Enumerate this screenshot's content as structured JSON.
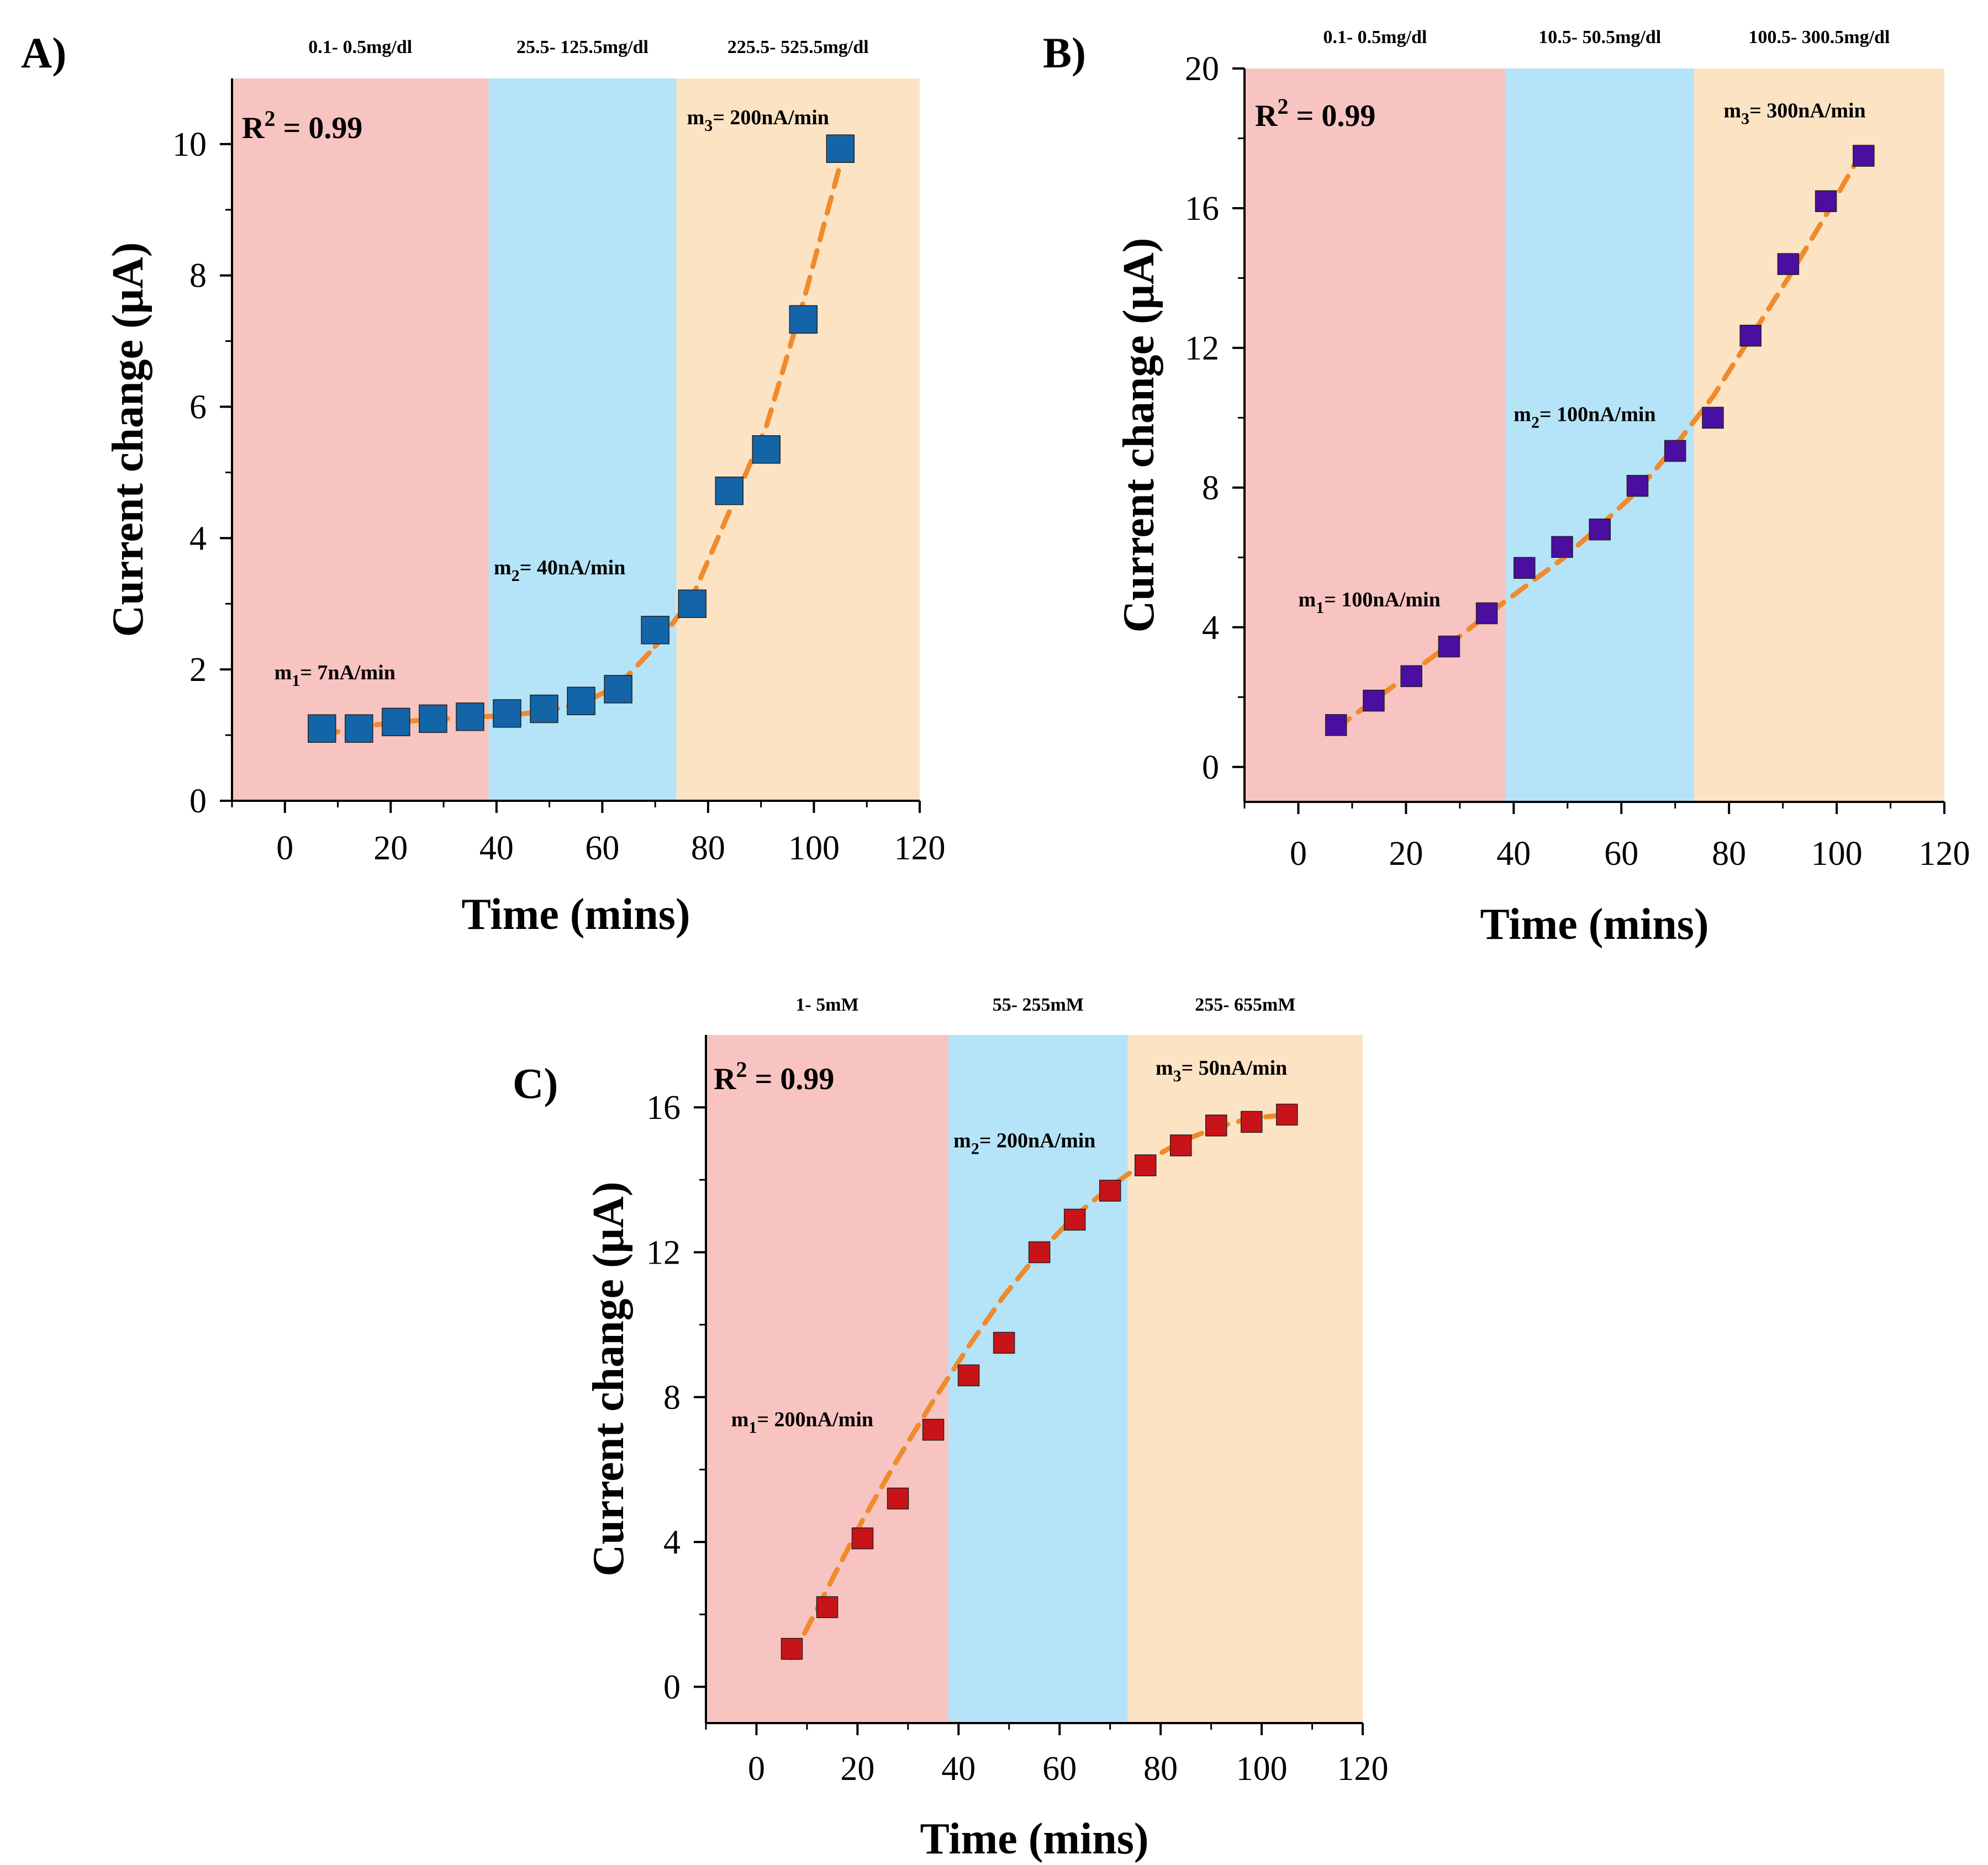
{
  "colors": {
    "band1": "#f8c4c1",
    "band2": "#b5e4f8",
    "band3": "#fce3c4",
    "fit": "#f08a2c",
    "axis": "#000000"
  },
  "chart_data": [
    {
      "type": "scatter",
      "panel_label": "A)",
      "xlabel": "Time (mins)",
      "ylabel": "Current change (μA)",
      "xlim": [
        -10,
        120
      ],
      "ylim": [
        0,
        11
      ],
      "xticks": [
        0,
        20,
        40,
        60,
        80,
        100,
        120
      ],
      "yticks": [
        0,
        2,
        4,
        6,
        8,
        10
      ],
      "marker_color": "#1464a8",
      "r2": {
        "prefix": "R",
        "sup": "2",
        "suffix": " = 0.99"
      },
      "bands": [
        {
          "from": -10,
          "to": 38.5,
          "color_key": "band1",
          "label": "0.1- 0.5mg/dl"
        },
        {
          "from": 38.5,
          "to": 74,
          "color_key": "band2",
          "label": "25.5- 125.5mg/dl"
        },
        {
          "from": 74,
          "to": 120,
          "color_key": "band3",
          "label": "225.5- 525.5mg/dl"
        }
      ],
      "slopes": [
        {
          "m": "m",
          "sub": "1",
          "text": "= 7nA/min",
          "x": -2,
          "y": 1.85
        },
        {
          "m": "m",
          "sub": "2",
          "text": "= 40nA/min",
          "x": 39.5,
          "y": 3.45
        },
        {
          "m": "m",
          "sub": "3",
          "text": "= 200nA/min",
          "x": 76,
          "y": 10.3
        }
      ],
      "series": [
        {
          "name": "data",
          "x": [
            7,
            14,
            21,
            28,
            35,
            42,
            49,
            56,
            63,
            70,
            77,
            84,
            91,
            98,
            105
          ],
          "y": [
            1.1,
            1.1,
            1.2,
            1.25,
            1.28,
            1.33,
            1.4,
            1.52,
            1.7,
            2.6,
            3.0,
            4.72,
            5.35,
            7.33,
            9.93
          ]
        }
      ],
      "fits": [
        {
          "x": [
            7,
            14,
            21,
            28,
            35,
            42,
            49,
            56,
            63,
            70
          ],
          "y": [
            1.0,
            1.12,
            1.2,
            1.24,
            1.27,
            1.3,
            1.36,
            1.48,
            1.75,
            2.35
          ]
        },
        {
          "x": [
            70,
            77,
            84,
            91,
            98,
            105
          ],
          "y": [
            2.35,
            3.1,
            4.4,
            5.7,
            7.6,
            9.7
          ]
        }
      ]
    },
    {
      "type": "scatter",
      "panel_label": "B)",
      "xlabel": "Time (mins)",
      "ylabel": "Current change (μA)",
      "xlim": [
        -10,
        120
      ],
      "ylim": [
        -1,
        20
      ],
      "xticks": [
        0,
        20,
        40,
        60,
        80,
        100,
        120
      ],
      "yticks": [
        0,
        4,
        8,
        12,
        16,
        20
      ],
      "marker_color": "#4a0fa0",
      "r2": {
        "prefix": "R",
        "sup": "2",
        "suffix": " = 0.99"
      },
      "bands": [
        {
          "from": -10,
          "to": 38.5,
          "color_key": "band1",
          "label": "0.1- 0.5mg/dl"
        },
        {
          "from": 38.5,
          "to": 73.5,
          "color_key": "band2",
          "label": "10.5- 50.5mg/dl"
        },
        {
          "from": 73.5,
          "to": 120,
          "color_key": "band3",
          "label": "100.5- 300.5mg/dl"
        }
      ],
      "slopes": [
        {
          "m": "m",
          "sub": "1",
          "text": "= 100nA/min",
          "x": 0,
          "y": 4.6
        },
        {
          "m": "m",
          "sub": "2",
          "text": "= 100nA/min",
          "x": 40,
          "y": 9.9
        },
        {
          "m": "m",
          "sub": "3",
          "text": "= 300nA/min",
          "x": 79,
          "y": 18.6
        }
      ],
      "series": [
        {
          "name": "data",
          "x": [
            7,
            14,
            21,
            28,
            35,
            42,
            49,
            56,
            63,
            70,
            77,
            84,
            91,
            98,
            105
          ],
          "y": [
            1.2,
            1.9,
            2.6,
            3.45,
            4.4,
            5.7,
            6.3,
            6.8,
            8.05,
            9.05,
            10.0,
            12.35,
            14.4,
            16.2,
            17.5
          ]
        }
      ],
      "fits": [
        {
          "x": [
            7,
            14,
            21,
            28,
            35,
            42,
            49,
            56,
            63,
            70
          ],
          "y": [
            1.1,
            1.9,
            2.7,
            3.5,
            4.35,
            5.15,
            5.95,
            6.9,
            7.9,
            9.2
          ]
        },
        {
          "x": [
            70,
            77,
            84,
            91,
            98,
            105
          ],
          "y": [
            9.2,
            10.6,
            12.3,
            14.0,
            15.8,
            17.7
          ]
        }
      ]
    },
    {
      "type": "scatter",
      "panel_label": "C)",
      "xlabel": "Time (mins)",
      "ylabel": "Current change (μA)",
      "xlim": [
        -10,
        120
      ],
      "ylim": [
        -1,
        18
      ],
      "xticks": [
        0,
        20,
        40,
        60,
        80,
        100,
        120
      ],
      "yticks": [
        0,
        4,
        8,
        12,
        16
      ],
      "marker_color": "#c81418",
      "r2": {
        "prefix": "R",
        "sup": "2",
        "suffix": " = 0.99"
      },
      "bands": [
        {
          "from": -10,
          "to": 38,
          "color_key": "band1",
          "label": "1- 5mM"
        },
        {
          "from": 38,
          "to": 73.5,
          "color_key": "band2",
          "label": "55- 255mM"
        },
        {
          "from": 73.5,
          "to": 120,
          "color_key": "band3",
          "label": "255- 655mM"
        }
      ],
      "slopes": [
        {
          "m": "m",
          "sub": "1",
          "text": "= 200nA/min",
          "x": -5,
          "y": 7.2
        },
        {
          "m": "m",
          "sub": "2",
          "text": "= 200nA/min",
          "x": 39,
          "y": 14.9
        },
        {
          "m": "m",
          "sub": "3",
          "text": "= 50nA/min",
          "x": 79,
          "y": 16.9
        }
      ],
      "series": [
        {
          "name": "data",
          "x": [
            7,
            14,
            21,
            28,
            35,
            42,
            49,
            56,
            63,
            70,
            77,
            84,
            91,
            98,
            105
          ],
          "y": [
            1.05,
            2.2,
            4.1,
            5.2,
            7.1,
            8.6,
            9.5,
            12.0,
            12.9,
            13.7,
            14.4,
            14.95,
            15.5,
            15.6,
            15.8
          ]
        }
      ],
      "fits": [
        {
          "x": [
            7,
            14,
            21,
            28,
            35,
            42,
            49,
            56,
            63,
            70,
            77,
            84,
            91,
            98,
            105
          ],
          "y": [
            0.8,
            2.7,
            4.6,
            6.3,
            7.9,
            9.4,
            10.8,
            12.0,
            13.0,
            13.8,
            14.5,
            15.05,
            15.45,
            15.7,
            15.8
          ]
        }
      ]
    }
  ]
}
